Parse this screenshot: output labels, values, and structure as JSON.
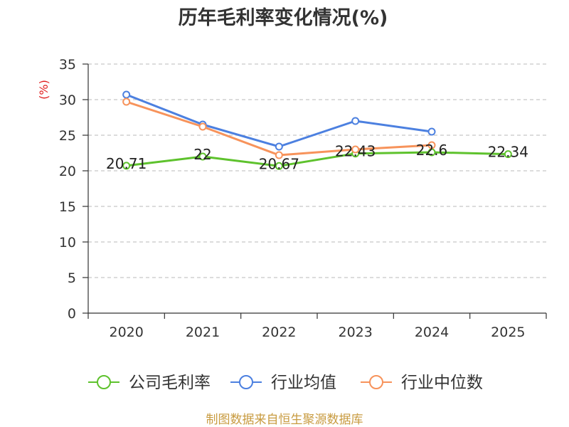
{
  "chart_data": {
    "type": "line",
    "title": "历年毛利率变化情况(%)",
    "ylabel": "(%)",
    "categories": [
      "2020",
      "2021",
      "2022",
      "2023",
      "2024",
      "2025"
    ],
    "ylim": [
      0,
      35
    ],
    "yticks": [
      0,
      5,
      10,
      15,
      20,
      25,
      30,
      35
    ],
    "grid": true,
    "legend_position": "bottom",
    "series": [
      {
        "name": "公司毛利率",
        "color": "#5ec22d",
        "show_labels": true,
        "values": [
          20.71,
          22,
          20.67,
          22.43,
          22.6,
          22.34
        ]
      },
      {
        "name": "行业均值",
        "color": "#4c80e0",
        "show_labels": false,
        "values": [
          30.7,
          26.5,
          23.4,
          27.0,
          25.5,
          null
        ]
      },
      {
        "name": "行业中位数",
        "color": "#f7935b",
        "show_labels": false,
        "values": [
          29.7,
          26.2,
          22.2,
          23.0,
          23.6,
          null
        ]
      }
    ]
  },
  "colors": {
    "y_axis_title": "#e02020",
    "source_note": "#c89b40"
  },
  "footer": {
    "source_text": "制图数据来自恒生聚源数据库"
  }
}
